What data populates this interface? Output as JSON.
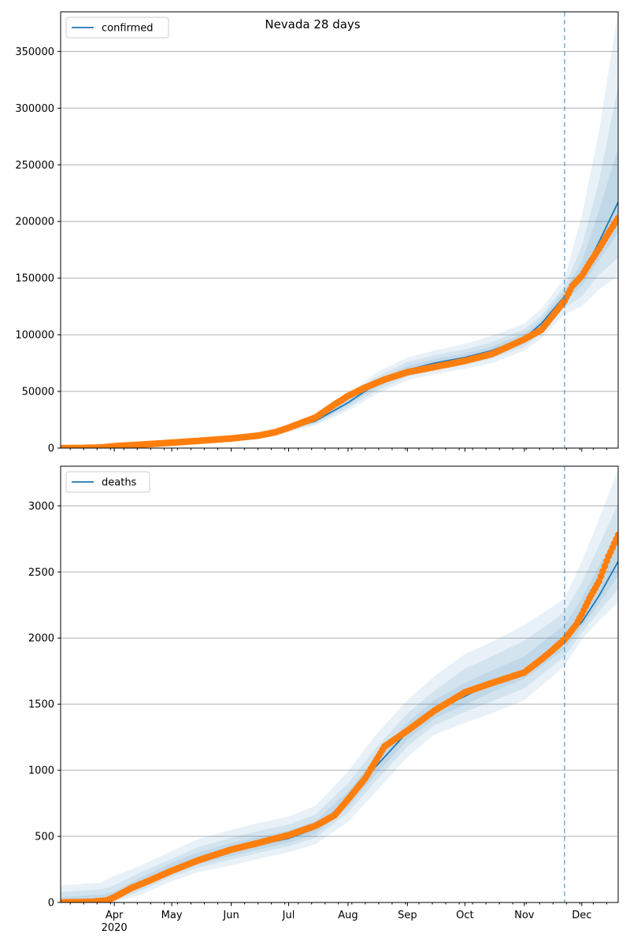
{
  "figure": {
    "title": "Nevada 28 days"
  },
  "colors": {
    "model": "#1f77b4",
    "observed": "#ff7f0e",
    "band": "#1f77b4",
    "grid": "#b0b0b0"
  },
  "chart_data": [
    {
      "type": "line",
      "panel": "top",
      "legend": "confirmed",
      "legend_position": "top-left",
      "ylim": [
        0,
        385000
      ],
      "yticks": [
        0,
        50000,
        100000,
        150000,
        200000,
        250000,
        300000,
        350000
      ],
      "grid": "y",
      "x_range": [
        "2020-03-04",
        "2020-12-20"
      ],
      "vline": "2020-11-22",
      "xtick_labels": [
        {
          "date": "2020-04-01",
          "label": "Apr"
        },
        {
          "date": "2020-05-01",
          "label": "May"
        },
        {
          "date": "2020-06-01",
          "label": "Jun"
        },
        {
          "date": "2020-07-01",
          "label": "Jul"
        },
        {
          "date": "2020-08-01",
          "label": "Aug"
        },
        {
          "date": "2020-09-01",
          "label": "Sep"
        },
        {
          "date": "2020-10-01",
          "label": "Oct"
        },
        {
          "date": "2020-11-01",
          "label": "Nov"
        },
        {
          "date": "2020-12-01",
          "label": "Dec"
        }
      ],
      "year_label": {
        "date": "2020-04-01",
        "label": "2020"
      },
      "model": {
        "dates": [
          "2020-03-04",
          "2020-04-01",
          "2020-05-01",
          "2020-06-01",
          "2020-06-24",
          "2020-07-15",
          "2020-08-01",
          "2020-08-15",
          "2020-09-01",
          "2020-09-15",
          "2020-10-01",
          "2020-10-15",
          "2020-11-01",
          "2020-11-10",
          "2020-11-22",
          "2020-12-01",
          "2020-12-10",
          "2020-12-20"
        ],
        "median": [
          300,
          3000,
          5500,
          8500,
          13500,
          24000,
          40000,
          56000,
          69000,
          75000,
          80000,
          86000,
          97000,
          110000,
          134000,
          152000,
          182000,
          217000
        ],
        "bands": [
          {
            "lower": [
              0,
              2000,
              4500,
              7000,
              11500,
              20000,
              33000,
              47000,
              60000,
              65000,
              70000,
              75000,
              86000,
              97000,
              118000,
              125000,
              140000,
              152000
            ],
            "upper": [
              700,
              4000,
              6500,
              10500,
              16000,
              28000,
              47000,
              66000,
              80000,
              86000,
              92000,
              99000,
              110000,
              123000,
              150000,
              205000,
              280000,
              385000
            ]
          },
          {
            "lower": [
              100,
              2400,
              4900,
              7600,
              12200,
              21300,
              35500,
              50000,
              63000,
              68500,
              73500,
              79000,
              89500,
              101000,
              124000,
              134000,
              153000,
              168000
            ],
            "upper": [
              500,
              3600,
              6100,
              9500,
              15000,
              26500,
              44500,
              62000,
              76000,
              82000,
              87000,
              93500,
              105000,
              117000,
              143000,
              178000,
              236000,
              320000
            ]
          },
          {
            "lower": [
              200,
              2700,
              5200,
              8000,
              12800,
              22600,
              37500,
              53000,
              66000,
              72000,
              76500,
              82500,
              93000,
              105500,
              129000,
              143000,
              166000,
              190000
            ],
            "upper": [
              400,
              3300,
              5800,
              9000,
              14200,
              25300,
              42500,
              59000,
              72500,
              78500,
              83500,
              89500,
              101000,
              114000,
              139000,
              164000,
              210000,
              265000
            ]
          }
        ]
      },
      "observed": {
        "dates": [
          "2020-03-04",
          "2020-03-15",
          "2020-03-25",
          "2020-04-01",
          "2020-04-15",
          "2020-05-01",
          "2020-05-15",
          "2020-06-01",
          "2020-06-15",
          "2020-06-24",
          "2020-07-01",
          "2020-07-15",
          "2020-07-25",
          "2020-08-01",
          "2020-08-10",
          "2020-08-20",
          "2020-09-01",
          "2020-09-15",
          "2020-10-01",
          "2020-10-15",
          "2020-11-01",
          "2020-11-10",
          "2020-11-15",
          "2020-11-22",
          "2020-11-26",
          "2020-12-01",
          "2020-12-05",
          "2020-12-10",
          "2020-12-15",
          "2020-12-20"
        ],
        "values": [
          0,
          100,
          500,
          1700,
          3100,
          4800,
          6400,
          8500,
          11000,
          14000,
          18000,
          27000,
          38500,
          46000,
          53500,
          60500,
          67000,
          71500,
          77000,
          83000,
          96000,
          104500,
          115000,
          130000,
          143000,
          152000,
          163000,
          176000,
          190000,
          203000
        ]
      }
    },
    {
      "type": "line",
      "panel": "bottom",
      "legend": "deaths",
      "legend_position": "top-left",
      "ylim": [
        0,
        3300
      ],
      "yticks": [
        0,
        500,
        1000,
        1500,
        2000,
        2500,
        3000
      ],
      "grid": "y",
      "x_range": [
        "2020-03-04",
        "2020-12-20"
      ],
      "vline": "2020-11-22",
      "xtick_labels": [
        {
          "date": "2020-04-01",
          "label": "Apr"
        },
        {
          "date": "2020-05-01",
          "label": "May"
        },
        {
          "date": "2020-06-01",
          "label": "Jun"
        },
        {
          "date": "2020-07-01",
          "label": "Jul"
        },
        {
          "date": "2020-08-01",
          "label": "Aug"
        },
        {
          "date": "2020-09-01",
          "label": "Sep"
        },
        {
          "date": "2020-10-01",
          "label": "Oct"
        },
        {
          "date": "2020-11-01",
          "label": "Nov"
        },
        {
          "date": "2020-12-01",
          "label": "Dec"
        }
      ],
      "year_label": {
        "date": "2020-04-01",
        "label": "2020"
      },
      "model": {
        "dates": [
          "2020-03-04",
          "2020-03-25",
          "2020-04-01",
          "2020-04-15",
          "2020-05-01",
          "2020-05-15",
          "2020-06-01",
          "2020-06-15",
          "2020-07-01",
          "2020-07-15",
          "2020-08-01",
          "2020-08-15",
          "2020-09-01",
          "2020-09-15",
          "2020-10-01",
          "2020-10-15",
          "2020-11-01",
          "2020-11-15",
          "2020-11-22",
          "2020-12-01",
          "2020-12-10",
          "2020-12-20"
        ],
        "median": [
          0,
          10,
          40,
          140,
          250,
          320,
          385,
          435,
          485,
          560,
          780,
          1020,
          1290,
          1450,
          1560,
          1660,
          1760,
          1900,
          2000,
          2120,
          2320,
          2580
        ],
        "bands": [
          {
            "lower": [
              0,
              0,
              0,
              60,
              160,
              230,
              280,
              330,
              380,
              440,
              610,
              830,
              1100,
              1270,
              1360,
              1430,
              1530,
              1700,
              1790,
              1990,
              2130,
              2270
            ],
            "upper": [
              130,
              150,
              200,
              280,
              390,
              480,
              550,
              600,
              650,
              730,
              990,
              1260,
              1530,
              1710,
              1880,
              1970,
              2100,
              2230,
              2300,
              2580,
              2900,
              3280
            ]
          },
          {
            "lower": [
              0,
              0,
              10,
              90,
              195,
              265,
              325,
              375,
              425,
              490,
              680,
              910,
              1180,
              1340,
              1440,
              1520,
              1620,
              1780,
              1860,
              2040,
              2200,
              2370
            ],
            "upper": [
              80,
              100,
              130,
              230,
              330,
              420,
              490,
              540,
              590,
              665,
              900,
              1160,
              1430,
              1600,
              1770,
              1860,
              1980,
              2120,
              2200,
              2420,
              2700,
              3020
            ]
          },
          {
            "lower": [
              0,
              0,
              20,
              110,
              215,
              290,
              350,
              400,
              450,
              520,
              725,
              960,
              1230,
              1390,
              1495,
              1590,
              1690,
              1840,
              1920,
              2080,
              2260,
              2470
            ],
            "upper": [
              40,
              60,
              80,
              190,
              300,
              380,
              450,
              495,
              545,
              615,
              840,
              1090,
              1360,
              1530,
              1660,
              1755,
              1860,
              2020,
              2100,
              2300,
              2550,
              2800
            ]
          }
        ]
      },
      "observed": {
        "dates": [
          "2020-03-04",
          "2020-03-20",
          "2020-03-28",
          "2020-04-01",
          "2020-04-10",
          "2020-04-20",
          "2020-05-01",
          "2020-05-15",
          "2020-06-01",
          "2020-06-15",
          "2020-07-01",
          "2020-07-15",
          "2020-07-25",
          "2020-08-01",
          "2020-08-10",
          "2020-08-20",
          "2020-09-01",
          "2020-09-15",
          "2020-10-01",
          "2020-10-15",
          "2020-11-01",
          "2020-11-10",
          "2020-11-15",
          "2020-11-22",
          "2020-11-28",
          "2020-12-01",
          "2020-12-05",
          "2020-12-10",
          "2020-12-15",
          "2020-12-20"
        ],
        "values": [
          0,
          5,
          15,
          40,
          110,
          170,
          240,
          320,
          400,
          450,
          510,
          580,
          660,
          780,
          940,
          1180,
          1300,
          1450,
          1590,
          1660,
          1740,
          1840,
          1900,
          1990,
          2100,
          2180,
          2300,
          2430,
          2620,
          2780
        ]
      }
    }
  ]
}
